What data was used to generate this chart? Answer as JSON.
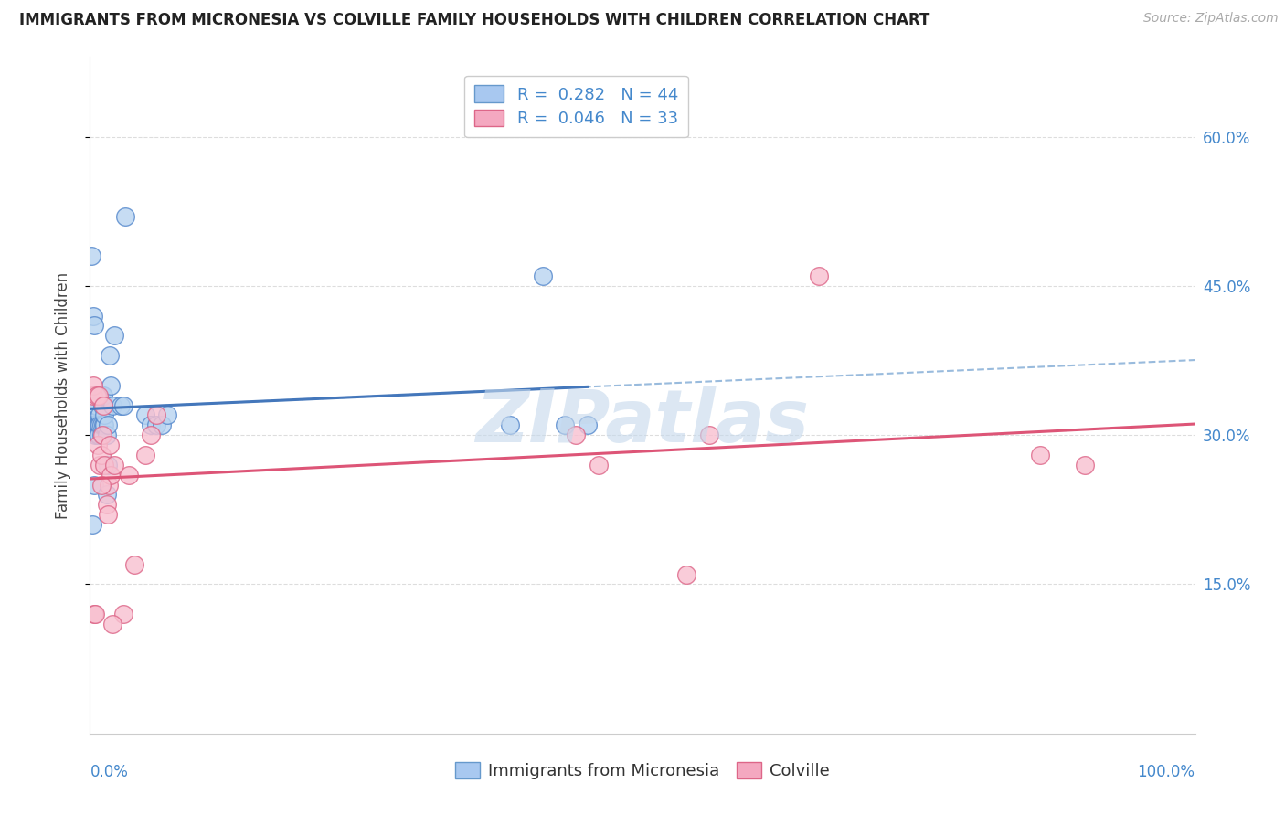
{
  "title": "IMMIGRANTS FROM MICRONESIA VS COLVILLE FAMILY HOUSEHOLDS WITH CHILDREN CORRELATION CHART",
  "source": "Source: ZipAtlas.com",
  "ylabel": "Family Households with Children",
  "legend1_r": "0.282",
  "legend1_n": "44",
  "legend2_r": "0.046",
  "legend2_n": "33",
  "legend_color1": "#A8C8F0",
  "legend_color2": "#F4A8C0",
  "legend_edge1": "#6699CC",
  "legend_edge2": "#DD6688",
  "blue_scatter_fill": "#B8D4F0",
  "blue_scatter_edge": "#5588CC",
  "pink_scatter_fill": "#F8C0D0",
  "pink_scatter_edge": "#DD6688",
  "blue_line_color": "#4477BB",
  "pink_line_color": "#DD5577",
  "dashed_line_color": "#99BBDD",
  "watermark_text": "ZIPatlas",
  "watermark_color": "#C5D8EC",
  "blue_x": [
    0.001,
    0.002,
    0.003,
    0.003,
    0.004,
    0.004,
    0.005,
    0.005,
    0.006,
    0.006,
    0.007,
    0.007,
    0.008,
    0.008,
    0.009,
    0.009,
    0.01,
    0.01,
    0.011,
    0.011,
    0.012,
    0.012,
    0.013,
    0.013,
    0.015,
    0.015,
    0.016,
    0.016,
    0.018,
    0.019,
    0.02,
    0.022,
    0.028,
    0.03,
    0.032,
    0.05,
    0.055,
    0.06,
    0.065,
    0.07,
    0.38,
    0.41,
    0.43,
    0.45
  ],
  "blue_y": [
    0.48,
    0.21,
    0.42,
    0.31,
    0.41,
    0.25,
    0.33,
    0.3,
    0.33,
    0.31,
    0.31,
    0.3,
    0.31,
    0.3,
    0.32,
    0.31,
    0.3,
    0.31,
    0.33,
    0.34,
    0.31,
    0.34,
    0.31,
    0.32,
    0.3,
    0.24,
    0.31,
    0.27,
    0.38,
    0.35,
    0.33,
    0.4,
    0.33,
    0.33,
    0.52,
    0.32,
    0.31,
    0.31,
    0.31,
    0.32,
    0.31,
    0.46,
    0.31,
    0.31
  ],
  "pink_x": [
    0.003,
    0.003,
    0.004,
    0.005,
    0.006,
    0.007,
    0.008,
    0.009,
    0.01,
    0.011,
    0.012,
    0.013,
    0.015,
    0.016,
    0.017,
    0.018,
    0.019,
    0.022,
    0.03,
    0.04,
    0.05,
    0.055,
    0.06,
    0.44,
    0.46,
    0.54,
    0.56,
    0.66,
    0.86,
    0.9,
    0.01,
    0.02,
    0.035
  ],
  "pink_y": [
    0.34,
    0.35,
    0.12,
    0.12,
    0.34,
    0.29,
    0.34,
    0.27,
    0.28,
    0.3,
    0.33,
    0.27,
    0.23,
    0.22,
    0.25,
    0.29,
    0.26,
    0.27,
    0.12,
    0.17,
    0.28,
    0.3,
    0.32,
    0.3,
    0.27,
    0.16,
    0.3,
    0.46,
    0.28,
    0.27,
    0.25,
    0.11,
    0.26
  ],
  "xmin": 0.0,
  "xmax": 1.0,
  "ymin": 0.0,
  "ymax": 0.68,
  "ytick_vals": [
    0.15,
    0.3,
    0.45,
    0.6
  ],
  "ytick_labels": [
    "15.0%",
    "30.0%",
    "45.0%",
    "60.0%"
  ],
  "xtick_vals": [
    0.0,
    0.1,
    0.2,
    0.3,
    0.4,
    0.5,
    0.6,
    0.7,
    0.8,
    0.9,
    1.0
  ],
  "grid_color": "#DDDDDD",
  "spine_color": "#CCCCCC",
  "tick_color": "#4488CC",
  "title_fontsize": 12,
  "label_fontsize": 12,
  "tick_fontsize": 12,
  "legend_fontsize": 13,
  "source_color": "#AAAAAA"
}
